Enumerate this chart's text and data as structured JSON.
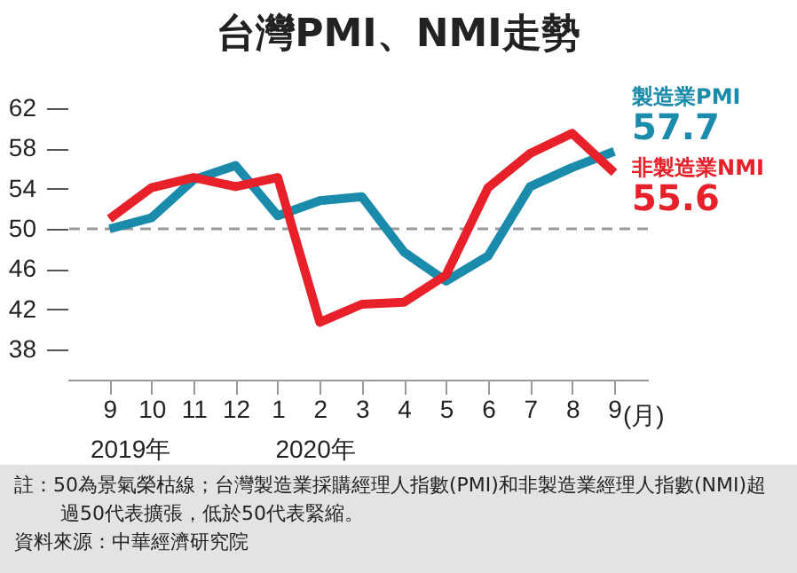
{
  "chart_data": {
    "type": "line",
    "title": "台灣PMI、NMI走勢",
    "xlabel": "(月)",
    "categories": [
      "9",
      "10",
      "11",
      "12",
      "1",
      "2",
      "3",
      "4",
      "5",
      "6",
      "7",
      "8",
      "9"
    ],
    "series": [
      {
        "name": "製造業PMI",
        "color": "#1b8bab",
        "values": [
          50.0,
          51.1,
          54.9,
          56.3,
          51.3,
          52.8,
          53.2,
          47.7,
          44.8,
          47.3,
          54.2,
          56.1,
          57.7
        ],
        "value_labels": [
          null,
          null,
          null,
          null,
          null,
          null,
          null,
          null,
          null,
          null,
          null,
          null,
          "57.7"
        ]
      },
      {
        "name": "非製造業NMI",
        "color": "#e8202a",
        "values": [
          51.0,
          54.1,
          55.1,
          54.2,
          55.1,
          40.7,
          42.5,
          42.7,
          45.4,
          54.1,
          57.5,
          59.5,
          55.6
        ],
        "value_labels": [
          null,
          null,
          null,
          null,
          null,
          null,
          null,
          null,
          null,
          null,
          null,
          null,
          "55.6"
        ]
      }
    ],
    "ylim": [
      35,
      62
    ],
    "yticks": [
      38,
      42,
      46,
      50,
      54,
      58,
      62
    ],
    "ref_lines": [
      {
        "axis": "y",
        "value": 50,
        "color": "#999999",
        "line_style": "dashed"
      }
    ],
    "grid": false,
    "legend": false,
    "marker": "none",
    "line_style": "solid",
    "annotations": [
      "2019年",
      "2020年",
      "註：50為景氣榮枯線；台灣製造業採購經理人指數(PMI)和非製造業經理人指數(NMI)超過50代表擴張，低於50代表緊縮。",
      "資料來源：中華經濟研究院"
    ]
  }
}
